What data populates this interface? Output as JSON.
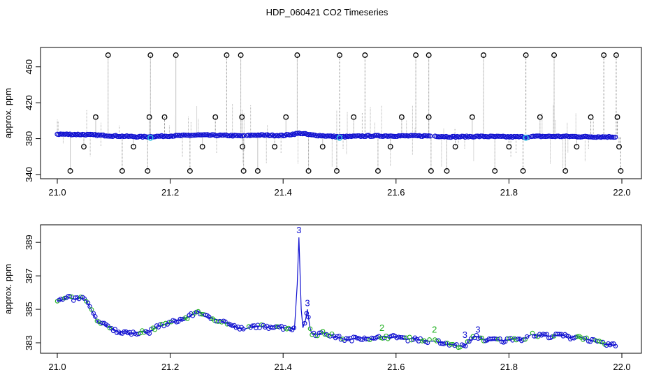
{
  "figure": {
    "title": "HDP_060421  CO2 Timeseries"
  },
  "colors": {
    "main": "#1010d0",
    "alt": "#20b020",
    "highlight": "#30c0e0",
    "spike": "#000000",
    "drop": "#888888"
  },
  "chart_data": [
    {
      "type": "scatter",
      "title": "HDP_060421  CO2 Timeseries",
      "xlabel": "",
      "ylabel": "approx. ppm",
      "xlim": [
        21.0,
        22.0
      ],
      "ylim": [
        340,
        480
      ],
      "x_ticks": [
        21.0,
        21.2,
        21.4,
        21.6,
        21.8,
        22.0
      ],
      "x_tick_labels": [
        "21.0",
        "21.2",
        "21.4",
        "21.6",
        "21.8",
        "22.0"
      ],
      "y_ticks": [
        340,
        380,
        420,
        460
      ],
      "y_tick_labels": [
        "340",
        "380",
        "420",
        "460"
      ],
      "grid": false,
      "legend": "none",
      "series": [
        {
          "role": "baseline",
          "marker": "circle",
          "x": [
            21.0,
            21.05,
            21.1,
            21.15,
            21.2,
            21.25,
            21.3,
            21.33,
            21.35,
            21.4,
            21.43,
            21.45,
            21.5,
            21.55,
            21.6,
            21.66,
            21.68,
            21.7,
            21.75,
            21.8,
            21.83,
            21.85,
            21.9,
            21.95,
            21.99
          ],
          "y": [
            385,
            384.5,
            383,
            382,
            383,
            384,
            383.5,
            383,
            384,
            383.5,
            386,
            384,
            382,
            383,
            383,
            383,
            382.5,
            382,
            382.5,
            382,
            382,
            382.5,
            382.5,
            382,
            382
          ]
        },
        {
          "role": "high outliers",
          "marker": "open-circle",
          "x": [
            21.09,
            21.165,
            21.21,
            21.3,
            21.325,
            21.425,
            21.5,
            21.545,
            21.635,
            21.658,
            21.755,
            21.83,
            21.88,
            21.968,
            21.99
          ],
          "y": [
            473,
            473,
            473,
            473,
            473,
            473,
            473,
            473,
            473,
            473,
            473,
            473,
            473,
            473,
            473
          ]
        },
        {
          "role": "mid outliers",
          "marker": "open-circle",
          "x": [
            21.068,
            21.163,
            21.19,
            21.28,
            21.327,
            21.405,
            21.525,
            21.61,
            21.658,
            21.735,
            21.855,
            21.945,
            21.992
          ],
          "y": [
            404,
            404,
            404,
            404,
            404,
            404,
            404,
            404,
            404,
            404,
            404,
            404,
            404
          ]
        },
        {
          "role": "low outliers",
          "marker": "open-circle",
          "x": [
            21.047,
            21.135,
            21.257,
            21.328,
            21.385,
            21.47,
            21.59,
            21.705,
            21.8,
            21.92,
            21.995
          ],
          "y": [
            371,
            371,
            371,
            371,
            371,
            371,
            371,
            371,
            371,
            371,
            371
          ]
        },
        {
          "role": "minimum outliers",
          "marker": "open-circle",
          "x": [
            21.023,
            21.115,
            21.16,
            21.235,
            21.33,
            21.355,
            21.445,
            21.495,
            21.568,
            21.662,
            21.69,
            21.775,
            21.825,
            21.9,
            21.998
          ],
          "y": [
            344,
            344,
            344,
            344,
            344,
            344,
            344,
            344,
            344,
            344,
            344,
            344,
            344,
            344,
            344
          ]
        },
        {
          "role": "highlighted",
          "marker": "circle",
          "x": [
            21.165,
            21.5,
            21.83
          ],
          "y": [
            381,
            381,
            381
          ]
        }
      ]
    },
    {
      "type": "line",
      "title": "",
      "xlabel": "",
      "ylabel": "approx. ppm",
      "xlim": [
        21.0,
        22.0
      ],
      "ylim": [
        382.5,
        389.8
      ],
      "x_ticks": [
        21.0,
        21.2,
        21.4,
        21.6,
        21.8,
        22.0
      ],
      "x_tick_labels": [
        "21.0",
        "21.2",
        "21.4",
        "21.6",
        "21.8",
        "22.0"
      ],
      "y_ticks": [
        383,
        385,
        387,
        389
      ],
      "y_tick_labels": [
        "383",
        "385",
        "387",
        "389"
      ],
      "grid": false,
      "legend": "none",
      "series": [
        {
          "role": "trace",
          "marker": "3",
          "x": [
            21.0,
            21.01,
            21.02,
            21.03,
            21.04,
            21.05,
            21.06,
            21.07,
            21.08,
            21.09,
            21.1,
            21.11,
            21.12,
            21.13,
            21.14,
            21.15,
            21.16,
            21.17,
            21.18,
            21.19,
            21.2,
            21.21,
            21.22,
            21.23,
            21.24,
            21.25,
            21.26,
            21.27,
            21.28,
            21.29,
            21.3,
            21.31,
            21.32,
            21.33,
            21.34,
            21.35,
            21.36,
            21.37,
            21.38,
            21.39,
            21.4,
            21.41,
            21.42,
            21.425,
            21.428,
            21.432,
            21.435,
            21.44,
            21.443,
            21.447,
            21.45,
            21.46,
            21.47,
            21.48,
            21.49,
            21.5,
            21.51,
            21.52,
            21.53,
            21.54,
            21.55,
            21.56,
            21.57,
            21.58,
            21.59,
            21.6,
            21.61,
            21.62,
            21.63,
            21.64,
            21.65,
            21.66,
            21.67,
            21.68,
            21.69,
            21.7,
            21.71,
            21.72,
            21.73,
            21.74,
            21.75,
            21.76,
            21.77,
            21.78,
            21.79,
            21.8,
            21.81,
            21.82,
            21.83,
            21.84,
            21.85,
            21.86,
            21.87,
            21.88,
            21.89,
            21.9,
            21.91,
            21.92,
            21.93,
            21.94,
            21.95,
            21.96,
            21.97,
            21.98,
            21.99
          ],
          "y": [
            385.5,
            385.6,
            385.7,
            385.6,
            385.7,
            385.6,
            385.0,
            384.3,
            384.1,
            384.0,
            383.8,
            383.6,
            383.7,
            383.5,
            383.6,
            383.7,
            383.6,
            383.8,
            384.0,
            384.1,
            384.2,
            384.3,
            384.4,
            384.5,
            384.7,
            384.9,
            384.6,
            384.5,
            384.4,
            384.3,
            384.2,
            384.0,
            383.9,
            383.8,
            383.9,
            384.0,
            384.0,
            383.9,
            384.0,
            384.0,
            383.9,
            383.9,
            383.8,
            386.5,
            389.3,
            385.0,
            383.9,
            384.4,
            385.0,
            384.0,
            383.6,
            383.5,
            383.6,
            383.5,
            383.4,
            383.3,
            383.2,
            383.2,
            383.3,
            383.3,
            383.3,
            383.2,
            383.3,
            383.4,
            383.3,
            383.4,
            383.3,
            383.2,
            383.3,
            383.2,
            383.1,
            383.1,
            383.1,
            383.0,
            382.9,
            382.9,
            382.8,
            382.8,
            383.1,
            383.4,
            383.3,
            383.1,
            383.2,
            383.2,
            383.1,
            383.2,
            383.3,
            383.2,
            383.3,
            383.5,
            383.4,
            383.5,
            383.4,
            383.4,
            383.5,
            383.4,
            383.3,
            383.4,
            383.3,
            383.2,
            383.1,
            383.0,
            382.9,
            382.9,
            382.8
          ]
        }
      ],
      "annotations": [
        {
          "text": "3",
          "x": 21.428,
          "y": 389.55
        },
        {
          "text": "3",
          "x": 21.443,
          "y": 385.2
        },
        {
          "text": "2",
          "x": 21.575,
          "y": 383.7
        },
        {
          "text": "2",
          "x": 21.668,
          "y": 383.6
        },
        {
          "text": "3",
          "x": 21.722,
          "y": 383.3
        },
        {
          "text": "3",
          "x": 21.745,
          "y": 383.6
        }
      ]
    }
  ]
}
